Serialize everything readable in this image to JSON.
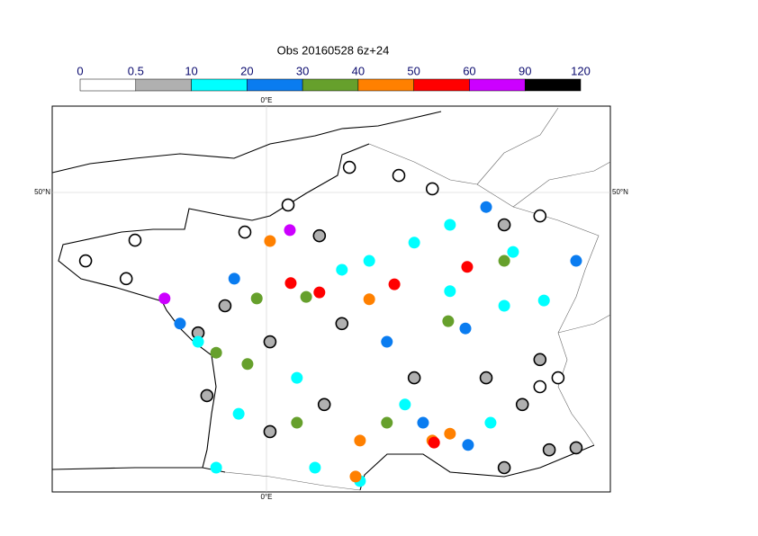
{
  "chart_data": {
    "type": "station-map",
    "title": "Obs 20160528 6z+24",
    "bounds": [
      0,
      0.5,
      10,
      20,
      30,
      40,
      50,
      60,
      90,
      120
    ],
    "colors": [
      "#ffffff",
      "#b0b0b0",
      "#00ffff",
      "#0a7cf0",
      "#66a02c",
      "#ff8000",
      "#ff0000",
      "#cc00ff",
      "#000000"
    ],
    "xticks": [
      {
        "value": 0,
        "label": "0°E"
      }
    ],
    "yticks": [
      {
        "value": 50,
        "label": "50°N"
      }
    ],
    "stations": [
      {
        "lon": 1.88,
        "lat": 50.62,
        "value": 0.2
      },
      {
        "lon": 3.0,
        "lat": 50.42,
        "value": 0.2
      },
      {
        "lon": 3.76,
        "lat": 50.09,
        "value": 0.2
      },
      {
        "lon": 0.49,
        "lat": 49.69,
        "value": 0.2
      },
      {
        "lon": -0.49,
        "lat": 49.02,
        "value": 0.2
      },
      {
        "lon": -2.98,
        "lat": 48.82,
        "value": 0.2
      },
      {
        "lon": -4.1,
        "lat": 48.31,
        "value": 0.2
      },
      {
        "lon": -3.18,
        "lat": 47.87,
        "value": 0.2
      },
      {
        "lon": 0.53,
        "lat": 49.07,
        "value": 75
      },
      {
        "lon": -2.31,
        "lat": 47.38,
        "value": 75
      },
      {
        "lon": 1.2,
        "lat": 48.93,
        "value": 5
      },
      {
        "lon": 2.33,
        "lat": 48.31,
        "value": 15
      },
      {
        "lon": 0.55,
        "lat": 47.76,
        "value": 55
      },
      {
        "lon": 1.2,
        "lat": 47.53,
        "value": 55
      },
      {
        "lon": 2.9,
        "lat": 47.73,
        "value": 55
      },
      {
        "lon": 4.55,
        "lat": 48.16,
        "value": 55
      },
      {
        "lon": 0.08,
        "lat": 48.8,
        "value": 45
      },
      {
        "lon": 2.33,
        "lat": 47.36,
        "value": 45
      },
      {
        "lon": -0.22,
        "lat": 47.38,
        "value": 35
      },
      {
        "lon": 0.9,
        "lat": 47.42,
        "value": 35
      },
      {
        "lon": 4.12,
        "lat": 46.82,
        "value": 35
      },
      {
        "lon": -1.14,
        "lat": 46.04,
        "value": 35
      },
      {
        "lon": -0.43,
        "lat": 45.76,
        "value": 35
      },
      {
        "lon": 2.73,
        "lat": 46.31,
        "value": 25
      },
      {
        "lon": 4.51,
        "lat": 46.64,
        "value": 25
      },
      {
        "lon": 7.02,
        "lat": 48.31,
        "value": 25
      },
      {
        "lon": 6.29,
        "lat": 47.33,
        "value": 15
      },
      {
        "lon": 5.39,
        "lat": 47.2,
        "value": 15
      },
      {
        "lon": 0.69,
        "lat": 45.42,
        "value": 15
      },
      {
        "lon": -0.63,
        "lat": 44.53,
        "value": 15
      },
      {
        "lon": -1.14,
        "lat": 43.2,
        "value": 15
      },
      {
        "lon": 1.1,
        "lat": 43.2,
        "value": 15
      },
      {
        "lon": 2.12,
        "lat": 42.87,
        "value": 15
      },
      {
        "lon": 3.76,
        "lat": 43.87,
        "value": 45
      },
      {
        "lon": 4.16,
        "lat": 44.04,
        "value": 45
      },
      {
        "lon": 3.8,
        "lat": 43.82,
        "value": 55
      },
      {
        "lon": 4.57,
        "lat": 43.76,
        "value": 25
      },
      {
        "lon": 5.08,
        "lat": 44.31,
        "value": 15
      },
      {
        "lon": 3.55,
        "lat": 44.31,
        "value": 25
      },
      {
        "lon": 2.73,
        "lat": 44.31,
        "value": 35
      },
      {
        "lon": 2.12,
        "lat": 43.87,
        "value": 45
      },
      {
        "lon": 2.02,
        "lat": 42.98,
        "value": 45
      },
      {
        "lon": 5.39,
        "lat": 43.2,
        "value": 5
      },
      {
        "lon": 6.41,
        "lat": 43.64,
        "value": 5
      },
      {
        "lon": 7.02,
        "lat": 43.69,
        "value": 5
      },
      {
        "lon": 5.8,
        "lat": 44.76,
        "value": 5
      },
      {
        "lon": 6.2,
        "lat": 45.87,
        "value": 5
      },
      {
        "lon": 6.61,
        "lat": 45.42,
        "value": 0.2
      },
      {
        "lon": 6.2,
        "lat": 45.2,
        "value": 0.2
      },
      {
        "lon": -1.35,
        "lat": 44.98,
        "value": 5
      },
      {
        "lon": 0.08,
        "lat": 44.09,
        "value": 5
      },
      {
        "lon": 1.31,
        "lat": 44.76,
        "value": 5
      },
      {
        "lon": -0.94,
        "lat": 47.2,
        "value": 5
      },
      {
        "lon": -1.55,
        "lat": 46.53,
        "value": 5
      },
      {
        "lon": 0.08,
        "lat": 46.31,
        "value": 5
      },
      {
        "lon": 1.71,
        "lat": 46.76,
        "value": 5
      },
      {
        "lon": 3.35,
        "lat": 45.42,
        "value": 5
      },
      {
        "lon": 4.98,
        "lat": 45.42,
        "value": 5
      },
      {
        "lon": 5.39,
        "lat": 49.2,
        "value": 5
      },
      {
        "lon": 6.2,
        "lat": 49.42,
        "value": 0.2
      },
      {
        "lon": 4.98,
        "lat": 49.64,
        "value": 25
      },
      {
        "lon": 5.59,
        "lat": 48.53,
        "value": 15
      },
      {
        "lon": 3.35,
        "lat": 48.76,
        "value": 15
      },
      {
        "lon": 4.16,
        "lat": 49.2,
        "value": 15
      },
      {
        "lon": 1.71,
        "lat": 48.09,
        "value": 15
      },
      {
        "lon": -1.55,
        "lat": 46.31,
        "value": 15
      },
      {
        "lon": -1.96,
        "lat": 46.76,
        "value": 25
      },
      {
        "lon": -0.73,
        "lat": 47.87,
        "value": 25
      },
      {
        "lon": 0.69,
        "lat": 44.31,
        "value": 35
      },
      {
        "lon": 5.39,
        "lat": 48.31,
        "value": 35
      },
      {
        "lon": 4.16,
        "lat": 47.56,
        "value": 15
      },
      {
        "lon": 3.14,
        "lat": 44.76,
        "value": 15
      }
    ]
  }
}
